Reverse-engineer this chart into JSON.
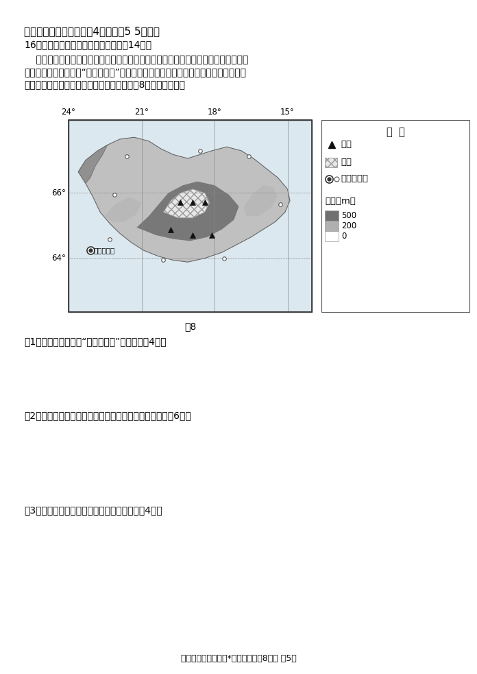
{
  "bg_color": "#ffffff",
  "title_section": "二、非选择题（本大题兲4小题，兲5 5分。）",
  "question_header": "16．阅读图文材料，完成下列要求。（14分）",
  "passage_line1": "冰岛，欧洲西北部岛国，位于大西洋中脊之上，冰川和火山大范围并存，数不胜数的",
  "passage_line2": "温泉点缀其间，被称为“冰与火之国”。国内能源资源得天独厚，炼铝业为其支柱产业。",
  "passage_line3": "首都雷克雅未克，是冰岛最大的港口城市。图8为冰岛区域图。",
  "fig_caption": "图8",
  "q1": "（1）分析冰岛被称为“冰与火之国”的原因。（4分）",
  "q2": "（2）根据图文材料，分析冰岛发展炼铝业的有利条件。（6分）",
  "q3": "（3）推测冰岛公路的分布特征并简述理由。（4分）",
  "footer": "湖北省新高考联考体*地理试卷（兲8页） 第5页",
  "legend_title": "图  例",
  "legend_volcano": "火山",
  "legend_glacier": "冰川",
  "legend_city": "首都、城市",
  "legend_elev": "海拔（m）",
  "elev_labels": [
    "500",
    "200",
    "0"
  ],
  "lat_labels": [
    "66°",
    "64°"
  ],
  "lon_labels": [
    "24°",
    "21°",
    "18°",
    "15°"
  ],
  "city_label": "雷克雅未克",
  "elev_colors": [
    "#707070",
    "#b0b0b0",
    "#ffffff"
  ]
}
